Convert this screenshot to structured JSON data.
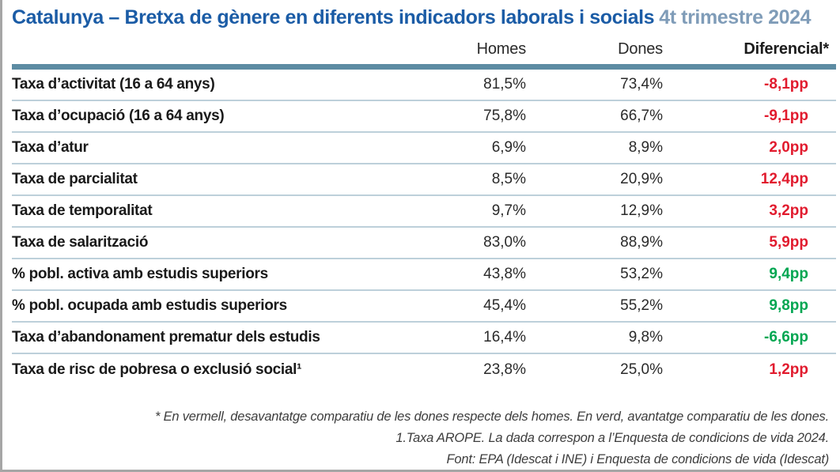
{
  "header": {
    "title": "Catalunya – Bretxa de gènere en diferents indicadors laborals i socials",
    "period": "4t trimestre 2024"
  },
  "table": {
    "columns": [
      "Homes",
      "Dones",
      "Diferencial*"
    ],
    "rows": [
      {
        "label": "Taxa d’activitat (16 a 64 anys)",
        "homes": "81,5%",
        "dones": "73,4%",
        "diferencial": "-8,1pp",
        "trend": "negative"
      },
      {
        "label": "Taxa d’ocupació (16 a 64 anys)",
        "homes": "75,8%",
        "dones": "66,7%",
        "diferencial": "-9,1pp",
        "trend": "negative"
      },
      {
        "label": "Taxa d’atur",
        "homes": "6,9%",
        "dones": "8,9%",
        "diferencial": "2,0pp",
        "trend": "negative"
      },
      {
        "label": "Taxa de parcialitat",
        "homes": "8,5%",
        "dones": "20,9%",
        "diferencial": "12,4pp",
        "trend": "negative"
      },
      {
        "label": "Taxa de temporalitat",
        "homes": "9,7%",
        "dones": "12,9%",
        "diferencial": "3,2pp",
        "trend": "negative"
      },
      {
        "label": "Taxa de salarització",
        "homes": "83,0%",
        "dones": "88,9%",
        "diferencial": "5,9pp",
        "trend": "negative"
      },
      {
        "label": "% pobl. activa amb estudis superiors",
        "homes": "43,8%",
        "dones": "53,2%",
        "diferencial": "9,4pp",
        "trend": "positive"
      },
      {
        "label": "% pobl. ocupada amb estudis superiors",
        "homes": "45,4%",
        "dones": "55,2%",
        "diferencial": "9,8pp",
        "trend": "positive"
      },
      {
        "label": "Taxa d’abandonament prematur dels estudis",
        "homes": "16,4%",
        "dones": "9,8%",
        "diferencial": "-6,6pp",
        "trend": "positive"
      },
      {
        "label": "Taxa de risc de pobresa o exclusió social¹",
        "homes": "23,8%",
        "dones": "25,0%",
        "diferencial": "1,2pp",
        "trend": "negative"
      }
    ]
  },
  "footnotes": [
    "* En vermell, desavantatge comparatiu de les dones respecte dels homes. En verd, avantatge comparatiu de les dones.",
    "1.Taxa AROPE. La dada correspon a l’Enquesta de condicions de vida 2024.",
    "Font: EPA (Idescat i INE) i Enquesta de condicions de vida (Idescat)"
  ],
  "colors": {
    "accent": "#1b5ca6",
    "period": "#7f9cb8",
    "bar": "#5d8ca3",
    "separator": "#bdd0da",
    "negative": "#e11b2e",
    "positive": "#00a651"
  },
  "chart_data": {
    "type": "table",
    "title": "Catalunya – Bretxa de gènere en diferents indicadors laborals i socials",
    "subtitle": "4t trimestre 2024",
    "columns": [
      "Homes",
      "Dones",
      "Diferencial (pp)"
    ],
    "rows": [
      {
        "indicator": "Taxa d'activitat (16 a 64 anys)",
        "homes": 81.5,
        "dones": 73.4,
        "diferencial": -8.1,
        "color": "red"
      },
      {
        "indicator": "Taxa d'ocupació (16 a 64 anys)",
        "homes": 75.8,
        "dones": 66.7,
        "diferencial": -9.1,
        "color": "red"
      },
      {
        "indicator": "Taxa d'atur",
        "homes": 6.9,
        "dones": 8.9,
        "diferencial": 2.0,
        "color": "red"
      },
      {
        "indicator": "Taxa de parcialitat",
        "homes": 8.5,
        "dones": 20.9,
        "diferencial": 12.4,
        "color": "red"
      },
      {
        "indicator": "Taxa de temporalitat",
        "homes": 9.7,
        "dones": 12.9,
        "diferencial": 3.2,
        "color": "red"
      },
      {
        "indicator": "Taxa de salarització",
        "homes": 83.0,
        "dones": 88.9,
        "diferencial": 5.9,
        "color": "red"
      },
      {
        "indicator": "% pobl. activa amb estudis superiors",
        "homes": 43.8,
        "dones": 53.2,
        "diferencial": 9.4,
        "color": "green"
      },
      {
        "indicator": "% pobl. ocupada amb estudis superiors",
        "homes": 45.4,
        "dones": 55.2,
        "diferencial": 9.8,
        "color": "green"
      },
      {
        "indicator": "Taxa d'abandonament prematur dels estudis",
        "homes": 16.4,
        "dones": 9.8,
        "diferencial": -6.6,
        "color": "green"
      },
      {
        "indicator": "Taxa de risc de pobresa o exclusió social (Taxa AROPE)",
        "homes": 23.8,
        "dones": 25.0,
        "diferencial": 1.2,
        "color": "red"
      }
    ]
  }
}
